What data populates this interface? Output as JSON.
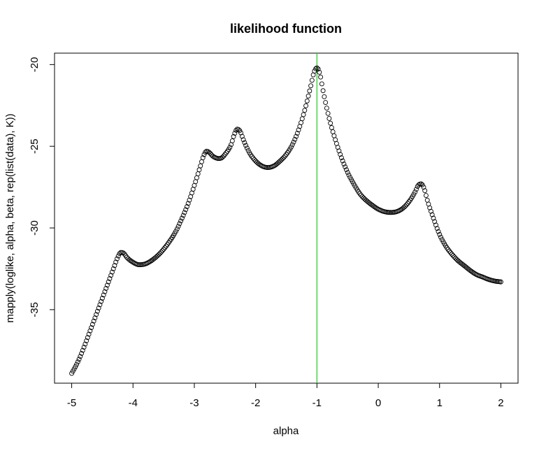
{
  "chart_data": {
    "type": "scatter",
    "title": "likelihood function",
    "xlabel": "alpha",
    "ylabel": "mapply(loglike, alpha, beta, rep(list(data), K))",
    "xlim": [
      -5.28,
      2.28
    ],
    "ylim": [
      -39.5,
      -19.3
    ],
    "xticks": [
      -5,
      -4,
      -3,
      -2,
      -1,
      0,
      1,
      2
    ],
    "xtick_labels": [
      "-5",
      "-4",
      "-3",
      "-2",
      "-1",
      "0",
      "1",
      "2"
    ],
    "yticks": [
      -35,
      -30,
      -25,
      -20
    ],
    "ytick_labels": [
      "-35",
      "-30",
      "-25",
      "-20"
    ],
    "grid": false,
    "marker": "open-circle",
    "point_step": 0.02,
    "vline": {
      "x": -1,
      "color": "#22cc22"
    },
    "x_range": [
      -5,
      2
    ],
    "curve_knots": [
      [
        -5.0,
        -38.9
      ],
      [
        -4.9,
        -38.2
      ],
      [
        -4.8,
        -37.3
      ],
      [
        -4.7,
        -36.3
      ],
      [
        -4.6,
        -35.3
      ],
      [
        -4.5,
        -34.3
      ],
      [
        -4.4,
        -33.3
      ],
      [
        -4.3,
        -32.3
      ],
      [
        -4.25,
        -31.8
      ],
      [
        -4.2,
        -31.5
      ],
      [
        -4.15,
        -31.55
      ],
      [
        -4.1,
        -31.8
      ],
      [
        -4.0,
        -32.1
      ],
      [
        -3.9,
        -32.25
      ],
      [
        -3.8,
        -32.2
      ],
      [
        -3.7,
        -32.0
      ],
      [
        -3.6,
        -31.7
      ],
      [
        -3.5,
        -31.3
      ],
      [
        -3.4,
        -30.8
      ],
      [
        -3.3,
        -30.2
      ],
      [
        -3.2,
        -29.4
      ],
      [
        -3.1,
        -28.5
      ],
      [
        -3.0,
        -27.4
      ],
      [
        -2.9,
        -26.2
      ],
      [
        -2.85,
        -25.6
      ],
      [
        -2.8,
        -25.3
      ],
      [
        -2.75,
        -25.4
      ],
      [
        -2.7,
        -25.6
      ],
      [
        -2.6,
        -25.75
      ],
      [
        -2.55,
        -25.7
      ],
      [
        -2.5,
        -25.5
      ],
      [
        -2.4,
        -24.9
      ],
      [
        -2.35,
        -24.3
      ],
      [
        -2.3,
        -23.95
      ],
      [
        -2.25,
        -24.1
      ],
      [
        -2.2,
        -24.6
      ],
      [
        -2.1,
        -25.4
      ],
      [
        -2.0,
        -25.9
      ],
      [
        -1.9,
        -26.2
      ],
      [
        -1.8,
        -26.3
      ],
      [
        -1.7,
        -26.2
      ],
      [
        -1.6,
        -25.9
      ],
      [
        -1.5,
        -25.5
      ],
      [
        -1.4,
        -24.9
      ],
      [
        -1.3,
        -24.0
      ],
      [
        -1.2,
        -22.8
      ],
      [
        -1.1,
        -21.3
      ],
      [
        -1.05,
        -20.5
      ],
      [
        -1.0,
        -20.2
      ],
      [
        -0.95,
        -20.6
      ],
      [
        -0.9,
        -21.6
      ],
      [
        -0.8,
        -23.3
      ],
      [
        -0.7,
        -24.6
      ],
      [
        -0.6,
        -25.7
      ],
      [
        -0.5,
        -26.6
      ],
      [
        -0.4,
        -27.3
      ],
      [
        -0.3,
        -27.9
      ],
      [
        -0.2,
        -28.3
      ],
      [
        -0.1,
        -28.6
      ],
      [
        0.0,
        -28.85
      ],
      [
        0.1,
        -29.0
      ],
      [
        0.2,
        -29.05
      ],
      [
        0.3,
        -29.0
      ],
      [
        0.4,
        -28.8
      ],
      [
        0.5,
        -28.4
      ],
      [
        0.6,
        -27.8
      ],
      [
        0.65,
        -27.4
      ],
      [
        0.7,
        -27.3
      ],
      [
        0.75,
        -27.6
      ],
      [
        0.8,
        -28.3
      ],
      [
        0.9,
        -29.4
      ],
      [
        1.0,
        -30.4
      ],
      [
        1.1,
        -31.1
      ],
      [
        1.2,
        -31.6
      ],
      [
        1.3,
        -32.0
      ],
      [
        1.4,
        -32.3
      ],
      [
        1.5,
        -32.6
      ],
      [
        1.6,
        -32.85
      ],
      [
        1.7,
        -33.0
      ],
      [
        1.8,
        -33.15
      ],
      [
        1.9,
        -33.25
      ],
      [
        2.0,
        -33.3
      ]
    ]
  }
}
